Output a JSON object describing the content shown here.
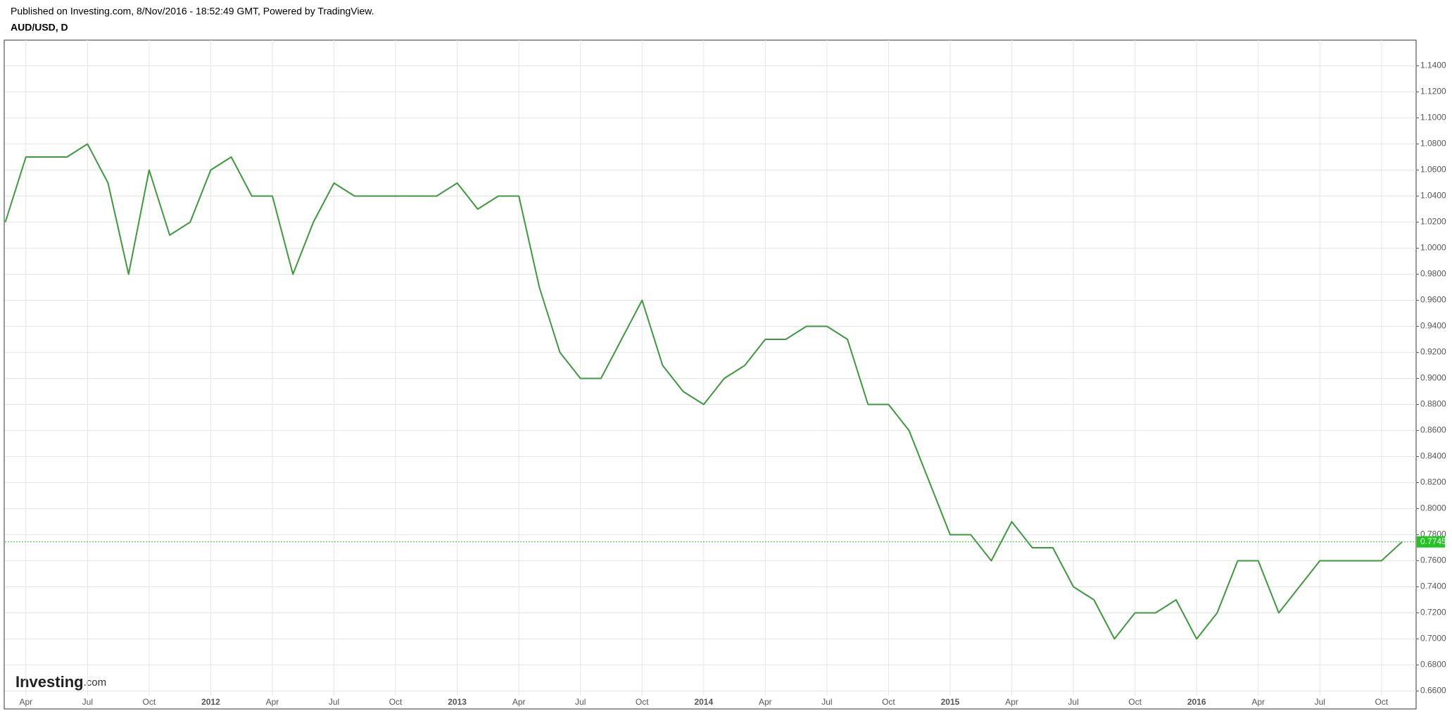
{
  "header": "Published on Investing.com, 8/Nov/2016 - 18:52:49 GMT, Powered by TradingView.",
  "logo": "Investing",
  "logo_suffix": ".com",
  "chart_data": {
    "type": "line",
    "title": "AUD/USD, D",
    "categories": [
      null,
      "Apr",
      null,
      null,
      "Jul",
      null,
      null,
      "Oct",
      null,
      null,
      "2012",
      null,
      null,
      "Apr",
      null,
      null,
      "Jul",
      null,
      null,
      "Oct",
      null,
      null,
      "2013",
      null,
      null,
      "Apr",
      null,
      null,
      "Jul",
      null,
      null,
      "Oct",
      null,
      null,
      "2014",
      null,
      null,
      "Apr",
      null,
      null,
      "Jul",
      null,
      null,
      "Oct",
      null,
      null,
      "2015",
      null,
      null,
      "Apr",
      null,
      null,
      "Jul",
      null,
      null,
      "Oct",
      null,
      null,
      "2016",
      null,
      null,
      "Apr",
      null,
      null,
      "Jul",
      null,
      null,
      "Oct",
      null
    ],
    "series": [
      {
        "name": "AUD/USD",
        "color": "#3c9a3c",
        "values": [
          1.02,
          1.07,
          1.07,
          1.07,
          1.08,
          1.05,
          0.98,
          1.06,
          1.01,
          1.02,
          1.06,
          1.07,
          1.04,
          1.04,
          0.98,
          1.02,
          1.05,
          1.04,
          1.04,
          1.04,
          1.04,
          1.04,
          1.05,
          1.03,
          1.04,
          1.04,
          0.97,
          0.92,
          0.9,
          0.9,
          0.93,
          0.96,
          0.91,
          0.89,
          0.88,
          0.9,
          0.91,
          0.93,
          0.93,
          0.94,
          0.94,
          0.93,
          0.88,
          0.88,
          0.86,
          0.82,
          0.78,
          0.78,
          0.76,
          0.79,
          0.77,
          0.77,
          0.74,
          0.73,
          0.7,
          0.72,
          0.72,
          0.73,
          0.7,
          0.72,
          0.76,
          0.76,
          0.72,
          0.74,
          0.76,
          0.76,
          0.76,
          0.76,
          0.7745
        ]
      }
    ],
    "last_price": 0.7745,
    "last_price_color": "#21c521",
    "ylim": [
      0.6565,
      1.1597
    ],
    "yticks": [
      {
        "value": 0.66,
        "label": "0.6600"
      },
      {
        "value": 0.68,
        "label": "0.6800"
      },
      {
        "value": 0.7,
        "label": "0.7000"
      },
      {
        "value": 0.72,
        "label": "0.7200"
      },
      {
        "value": 0.74,
        "label": "0.7400"
      },
      {
        "value": 0.76,
        "label": "0.7600"
      },
      {
        "value": 0.78,
        "label": "0.7800"
      },
      {
        "value": 0.8,
        "label": "0.8000"
      },
      {
        "value": 0.82,
        "label": "0.8200"
      },
      {
        "value": 0.84,
        "label": "0.8400"
      },
      {
        "value": 0.86,
        "label": "0.8600"
      },
      {
        "value": 0.88,
        "label": "0.8800"
      },
      {
        "value": 0.9,
        "label": "0.9000"
      },
      {
        "value": 0.92,
        "label": "0.9200"
      },
      {
        "value": 0.94,
        "label": "0.9400"
      },
      {
        "value": 0.96,
        "label": "0.9600"
      },
      {
        "value": 0.98,
        "label": "0.9800"
      },
      {
        "value": 1.0,
        "label": "1.0000"
      },
      {
        "value": 1.02,
        "label": "1.0200"
      },
      {
        "value": 1.04,
        "label": "1.0400"
      },
      {
        "value": 1.06,
        "label": "1.0600"
      },
      {
        "value": 1.08,
        "label": "1.0800"
      },
      {
        "value": 1.1,
        "label": "1.1000"
      },
      {
        "value": 1.12,
        "label": "1.1200"
      },
      {
        "value": 1.14,
        "label": "1.1400"
      }
    ],
    "grid": true
  }
}
